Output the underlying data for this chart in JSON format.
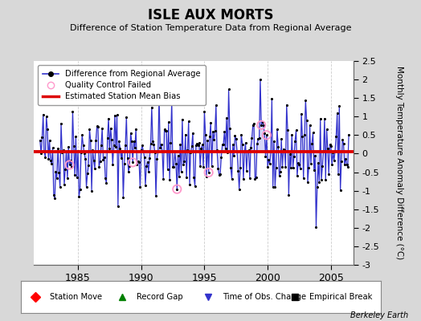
{
  "title": "ISLE AUX MORTS",
  "subtitle": "Difference of Station Temperature Data from Regional Average",
  "ylabel_right": "Monthly Temperature Anomaly Difference (°C)",
  "bias_value": 0.05,
  "ylim": [
    -3.0,
    2.5
  ],
  "xlim": [
    1981.5,
    2006.8
  ],
  "xticks": [
    1985,
    1990,
    1995,
    2000,
    2005
  ],
  "yticks_right": [
    -3,
    -2.5,
    -2,
    -1.5,
    -1,
    -0.5,
    0,
    0.5,
    1,
    1.5,
    2,
    2.5
  ],
  "background_color": "#d8d8d8",
  "plot_bg_color": "#ffffff",
  "line_color": "#3333cc",
  "fill_color": "#9999ee",
  "dot_color": "#000000",
  "bias_color": "#dd0000",
  "qc_color": "#ff99cc",
  "berkeley_earth_text": "Berkeley Earth",
  "seed": 42
}
